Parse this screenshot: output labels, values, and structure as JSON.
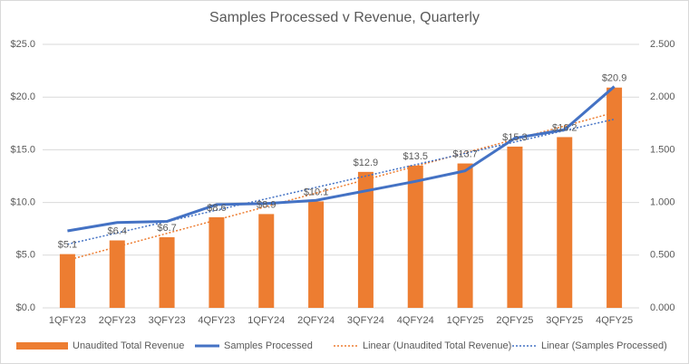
{
  "chart_data": {
    "type": "bar-line",
    "title": "Samples Processed v Revenue, Quarterly",
    "categories": [
      "1QFY23",
      "2QFY23",
      "3QFY23",
      "4QFY23",
      "1QFY24",
      "2QFY24",
      "3QFY24",
      "4QFY24",
      "1QFY25",
      "2QFY25",
      "3QFY25",
      "4QFY25"
    ],
    "series": [
      {
        "name": "Unaudited Total Revenue",
        "type": "bar",
        "color": "#ED7D31",
        "values": [
          5.1,
          6.4,
          6.7,
          8.6,
          8.9,
          10.1,
          12.9,
          13.5,
          13.7,
          15.3,
          16.2,
          20.9
        ],
        "value_labels": [
          "$5.1",
          "$6.4",
          "$6.7",
          "$8.6",
          "$8.9",
          "$10.1",
          "$12.9",
          "$13.5",
          "$13.7",
          "$15.3",
          "$16.2",
          "$20.9"
        ]
      },
      {
        "name": "Samples Processed",
        "type": "line",
        "color": "#4472C4",
        "axis": "y2",
        "values": [
          0.73,
          0.81,
          0.82,
          0.98,
          0.99,
          1.02,
          1.11,
          1.2,
          1.3,
          1.61,
          1.69,
          2.1
        ]
      }
    ],
    "trendlines": [
      {
        "name": "Linear (Unaudited Total Revenue)",
        "series": 0,
        "color": "#ED7D31"
      },
      {
        "name": "Linear (Samples Processed)",
        "series": 1,
        "color": "#4472C4"
      }
    ],
    "ylim": [
      0,
      25
    ],
    "yticks": [
      {
        "value": 0,
        "label": "$0.0"
      },
      {
        "value": 5,
        "label": "$5.0"
      },
      {
        "value": 10,
        "label": "$10.0"
      },
      {
        "value": 15,
        "label": "$15.0"
      },
      {
        "value": 20,
        "label": "$20.0"
      },
      {
        "value": 25,
        "label": "$25.0"
      }
    ],
    "y2lim": [
      0,
      2.5
    ],
    "y2ticks": [
      {
        "value": 0,
        "label": "0.000"
      },
      {
        "value": 0.5,
        "label": "0.500"
      },
      {
        "value": 1,
        "label": "1.000"
      },
      {
        "value": 1.5,
        "label": "1.500"
      },
      {
        "value": 2,
        "label": "2.000"
      },
      {
        "value": 2.5,
        "label": "2.500"
      }
    ],
    "grid": true
  }
}
